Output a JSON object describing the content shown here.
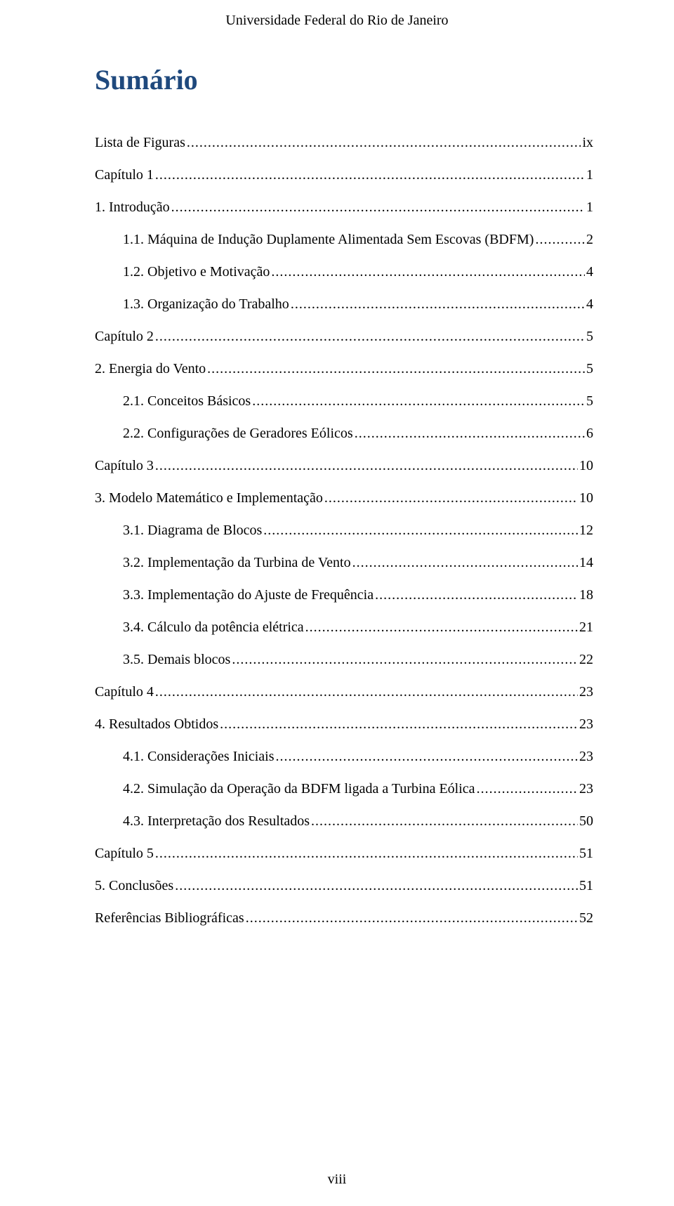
{
  "header": "Universidade Federal do Rio de Janeiro",
  "title": "Sumário",
  "title_color": "#1f497d",
  "colors": {
    "text": "#000000",
    "background": "#ffffff"
  },
  "typography": {
    "body_font": "Times New Roman",
    "body_size_pt": 12,
    "title_size_pt": 24,
    "title_weight": "bold"
  },
  "toc": [
    {
      "label": "Lista de Figuras",
      "page": "ix",
      "indent": 0
    },
    {
      "label": "Capítulo 1",
      "page": "1",
      "indent": 0
    },
    {
      "label": "1. Introdução",
      "page": "1",
      "indent": 0
    },
    {
      "label": "1.1.  Máquina de Indução Duplamente Alimentada Sem Escovas (BDFM)",
      "page": "2",
      "indent": 1
    },
    {
      "label": "1.2.  Objetivo e Motivação",
      "page": "4",
      "indent": 1
    },
    {
      "label": "1.3.  Organização do Trabalho",
      "page": "4",
      "indent": 1
    },
    {
      "label": "Capítulo 2",
      "page": "5",
      "indent": 0
    },
    {
      "label": "2. Energia do Vento",
      "page": "5",
      "indent": 0
    },
    {
      "label": "2.1.  Conceitos Básicos",
      "page": "5",
      "indent": 1
    },
    {
      "label": "2.2.  Configurações de Geradores Eólicos",
      "page": "6",
      "indent": 1
    },
    {
      "label": "Capítulo 3",
      "page": "10",
      "indent": 0
    },
    {
      "label": "3. Modelo Matemático e Implementação",
      "page": "10",
      "indent": 0
    },
    {
      "label": "3.1.  Diagrama de Blocos",
      "page": "12",
      "indent": 1
    },
    {
      "label": "3.2.  Implementação da Turbina de Vento",
      "page": "14",
      "indent": 1
    },
    {
      "label": "3.3.  Implementação do Ajuste de Frequência",
      "page": "18",
      "indent": 1
    },
    {
      "label": "3.4.  Cálculo da potência elétrica",
      "page": "21",
      "indent": 1
    },
    {
      "label": "3.5.  Demais blocos",
      "page": "22",
      "indent": 1
    },
    {
      "label": "Capítulo 4",
      "page": "23",
      "indent": 0
    },
    {
      "label": "4. Resultados Obtidos",
      "page": "23",
      "indent": 0
    },
    {
      "label": "4.1.  Considerações Iniciais",
      "page": "23",
      "indent": 1
    },
    {
      "label": "4.2.  Simulação da Operação da BDFM ligada a Turbina Eólica",
      "page": "23",
      "indent": 1
    },
    {
      "label": "4.3.  Interpretação dos Resultados",
      "page": "50",
      "indent": 1
    },
    {
      "label": "Capítulo 5",
      "page": "51",
      "indent": 0
    },
    {
      "label": "5. Conclusões",
      "page": "51",
      "indent": 0
    },
    {
      "label": "Referências Bibliográficas",
      "page": "52",
      "indent": 0
    }
  ],
  "footer_page_number": "viii"
}
